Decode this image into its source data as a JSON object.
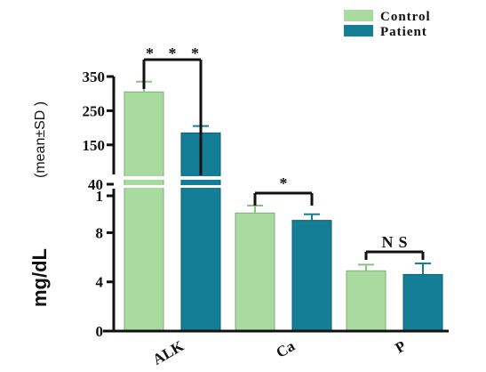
{
  "chart_data": {
    "type": "bar",
    "ylabel": "mg/dL",
    "ylabel_sub": "(mean±SD )",
    "categories": [
      "ALK",
      "Ca",
      "P"
    ],
    "series": [
      {
        "name": "Control",
        "color": "#a9dba0",
        "values": [
          305,
          9.6,
          4.9
        ],
        "errors": [
          30,
          0.6,
          0.5
        ]
      },
      {
        "name": "Patient",
        "color": "#137e96",
        "values": [
          185,
          9.0,
          4.6
        ],
        "errors": [
          20,
          0.5,
          0.9
        ]
      }
    ],
    "axis_break": true,
    "lower_ticks": [
      "0",
      "4",
      "8",
      "1"
    ],
    "upper_ticks": [
      "40",
      "150",
      "250",
      "350"
    ],
    "lower_ylim": [
      0,
      11
    ],
    "upper_ylim": [
      40,
      350
    ],
    "significance": [
      "* * *",
      "*",
      "NS"
    ],
    "legend_position": "top-right",
    "grid": false
  }
}
